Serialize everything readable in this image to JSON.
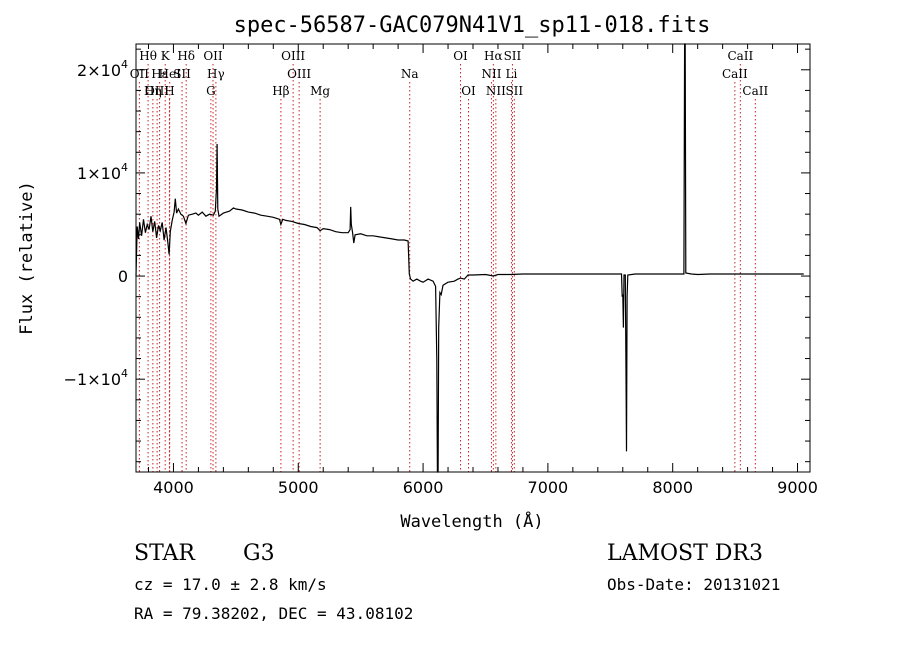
{
  "chart_data": {
    "type": "line",
    "title": "spec-56587-GAC079N41V1_sp11-018.fits",
    "xlabel": "Wavelength (Å)",
    "ylabel": "Flux (relative)",
    "xlim": [
      3700,
      9100
    ],
    "ylim": [
      -19000,
      22500
    ],
    "xticks": [
      4000,
      5000,
      6000,
      7000,
      8000,
      9000
    ],
    "xtick_labels": [
      "4000",
      "5000",
      "6000",
      "7000",
      "8000",
      "9000"
    ],
    "yticks": [
      {
        "value": -10000,
        "mantissa": "−1×10",
        "exp": "4"
      },
      {
        "value": 0,
        "mantissa": "0",
        "exp": ""
      },
      {
        "value": 10000,
        "mantissa": "1×10",
        "exp": "4"
      },
      {
        "value": 20000,
        "mantissa": "2×10",
        "exp": "4"
      }
    ],
    "spectrum": [
      [
        3700,
        0
      ],
      [
        3710,
        4800
      ],
      [
        3720,
        3600
      ],
      [
        3730,
        5200
      ],
      [
        3745,
        3900
      ],
      [
        3760,
        5500
      ],
      [
        3775,
        4200
      ],
      [
        3790,
        5000
      ],
      [
        3805,
        4500
      ],
      [
        3820,
        5800
      ],
      [
        3835,
        4300
      ],
      [
        3850,
        5300
      ],
      [
        3865,
        3700
      ],
      [
        3880,
        4900
      ],
      [
        3895,
        4400
      ],
      [
        3910,
        5200
      ],
      [
        3925,
        3500
      ],
      [
        3940,
        4700
      ],
      [
        3955,
        3300
      ],
      [
        3965,
        2100
      ],
      [
        3975,
        4300
      ],
      [
        3990,
        5400
      ],
      [
        4005,
        6200
      ],
      [
        4015,
        7500
      ],
      [
        4025,
        6100
      ],
      [
        4040,
        6500
      ],
      [
        4060,
        6000
      ],
      [
        4080,
        5800
      ],
      [
        4100,
        5100
      ],
      [
        4120,
        5900
      ],
      [
        4150,
        6000
      ],
      [
        4180,
        6100
      ],
      [
        4200,
        5900
      ],
      [
        4230,
        6200
      ],
      [
        4260,
        5800
      ],
      [
        4290,
        6000
      ],
      [
        4320,
        5900
      ],
      [
        4335,
        6300
      ],
      [
        4345,
        8500
      ],
      [
        4350,
        12800
      ],
      [
        4355,
        6500
      ],
      [
        4365,
        5800
      ],
      [
        4400,
        6100
      ],
      [
        4450,
        6300
      ],
      [
        4480,
        6600
      ],
      [
        4500,
        6500
      ],
      [
        4550,
        6400
      ],
      [
        4600,
        6200
      ],
      [
        4650,
        6100
      ],
      [
        4700,
        5900
      ],
      [
        4750,
        5800
      ],
      [
        4800,
        5700
      ],
      [
        4850,
        5500
      ],
      [
        4861,
        5000
      ],
      [
        4875,
        5500
      ],
      [
        4900,
        5400
      ],
      [
        4950,
        5300
      ],
      [
        5000,
        5100
      ],
      [
        5050,
        5000
      ],
      [
        5100,
        4800
      ],
      [
        5150,
        4700
      ],
      [
        5175,
        4400
      ],
      [
        5200,
        4600
      ],
      [
        5250,
        4500
      ],
      [
        5300,
        4300
      ],
      [
        5350,
        4200
      ],
      [
        5400,
        4200
      ],
      [
        5415,
        4500
      ],
      [
        5420,
        6700
      ],
      [
        5425,
        5000
      ],
      [
        5435,
        4200
      ],
      [
        5445,
        3200
      ],
      [
        5455,
        4000
      ],
      [
        5500,
        4100
      ],
      [
        5550,
        3900
      ],
      [
        5600,
        3900
      ],
      [
        5650,
        3800
      ],
      [
        5700,
        3700
      ],
      [
        5750,
        3600
      ],
      [
        5800,
        3500
      ],
      [
        5850,
        3500
      ],
      [
        5880,
        3400
      ],
      [
        5890,
        200
      ],
      [
        5900,
        -300
      ],
      [
        5920,
        -500
      ],
      [
        5950,
        -300
      ],
      [
        5980,
        -500
      ],
      [
        6000,
        -600
      ],
      [
        6040,
        -300
      ],
      [
        6080,
        -500
      ],
      [
        6100,
        -1000
      ],
      [
        6110,
        -8000
      ],
      [
        6115,
        -19000
      ],
      [
        6120,
        -19000
      ],
      [
        6125,
        -5000
      ],
      [
        6135,
        -1600
      ],
      [
        6145,
        -1800
      ],
      [
        6160,
        -900
      ],
      [
        6200,
        -600
      ],
      [
        6250,
        -500
      ],
      [
        6280,
        -300
      ],
      [
        6300,
        -200
      ],
      [
        6330,
        -300
      ],
      [
        6360,
        100
      ],
      [
        6400,
        100
      ],
      [
        6500,
        150
      ],
      [
        6563,
        0
      ],
      [
        6600,
        150
      ],
      [
        6700,
        150
      ],
      [
        6800,
        200
      ],
      [
        6900,
        200
      ],
      [
        7000,
        200
      ],
      [
        7100,
        200
      ],
      [
        7200,
        200
      ],
      [
        7300,
        200
      ],
      [
        7400,
        200
      ],
      [
        7500,
        200
      ],
      [
        7590,
        200
      ],
      [
        7595,
        -2000
      ],
      [
        7600,
        -1800
      ],
      [
        7605,
        -5000
      ],
      [
        7610,
        100
      ],
      [
        7620,
        100
      ],
      [
        7625,
        -8000
      ],
      [
        7630,
        -17000
      ],
      [
        7635,
        -2000
      ],
      [
        7640,
        100
      ],
      [
        7700,
        200
      ],
      [
        7800,
        200
      ],
      [
        7900,
        200
      ],
      [
        8000,
        200
      ],
      [
        8080,
        200
      ],
      [
        8090,
        200
      ],
      [
        8095,
        22500
      ],
      [
        8100,
        22500
      ],
      [
        8105,
        300
      ],
      [
        8150,
        200
      ],
      [
        8200,
        150
      ],
      [
        8300,
        200
      ],
      [
        8400,
        200
      ],
      [
        8500,
        200
      ],
      [
        8600,
        200
      ],
      [
        8700,
        200
      ],
      [
        8800,
        200
      ],
      [
        8900,
        200
      ],
      [
        9000,
        200
      ],
      [
        9050,
        200
      ]
    ],
    "line_markers": [
      {
        "label": "Hθ",
        "x": 3797,
        "row": 0
      },
      {
        "label": "OII",
        "x": 3727,
        "row": 1
      },
      {
        "label": "OIII",
        "x": 3869,
        "row": 2
      },
      {
        "label": "Hε",
        "x": 3889,
        "row": 1
      },
      {
        "label": "K",
        "x": 3934,
        "row": 0
      },
      {
        "label": "HeI",
        "x": 3970,
        "row": 1
      },
      {
        "label": "Hη",
        "x": 3835,
        "row": 2
      },
      {
        "label": "H",
        "x": 3968,
        "row": 2
      },
      {
        "label": "SII",
        "x": 4069,
        "row": 1
      },
      {
        "label": "Hδ",
        "x": 4102,
        "row": 0
      },
      {
        "label": "OII",
        "x": 4317,
        "row": 0
      },
      {
        "label": "Hγ",
        "x": 4340,
        "row": 1
      },
      {
        "label": "G",
        "x": 4300,
        "row": 2
      },
      {
        "label": "OIII",
        "x": 4959,
        "row": 0
      },
      {
        "label": "OIII",
        "x": 5007,
        "row": 1
      },
      {
        "label": "Hβ",
        "x": 4861,
        "row": 2
      },
      {
        "label": "Mg",
        "x": 5175,
        "row": 2
      },
      {
        "label": "Na",
        "x": 5893,
        "row": 1
      },
      {
        "label": "OI",
        "x": 6300,
        "row": 0
      },
      {
        "label": "OI",
        "x": 6364,
        "row": 2
      },
      {
        "label": "Hα",
        "x": 6563,
        "row": 0
      },
      {
        "label": "SII",
        "x": 6716,
        "row": 0
      },
      {
        "label": "NII",
        "x": 6548,
        "row": 1
      },
      {
        "label": "Li",
        "x": 6708,
        "row": 1
      },
      {
        "label": "NII",
        "x": 6583,
        "row": 2
      },
      {
        "label": "SII",
        "x": 6731,
        "row": 2
      },
      {
        "label": "CaII",
        "x": 8542,
        "row": 0
      },
      {
        "label": "CaII",
        "x": 8498,
        "row": 1
      },
      {
        "label": "CaII",
        "x": 8662,
        "row": 2
      }
    ],
    "grid": false,
    "legend": "none"
  },
  "info": {
    "class": "STAR",
    "subclass": "G3",
    "survey": "LAMOST DR3",
    "cz": "cz = 17.0 ± 2.8 km/s",
    "obs_date": "Obs-Date: 20131021",
    "coords": "RA =  79.38202, DEC =  43.08102"
  },
  "colors": {
    "spectrum": "#000000",
    "markers": "#cc2222",
    "axes": "#000000"
  }
}
